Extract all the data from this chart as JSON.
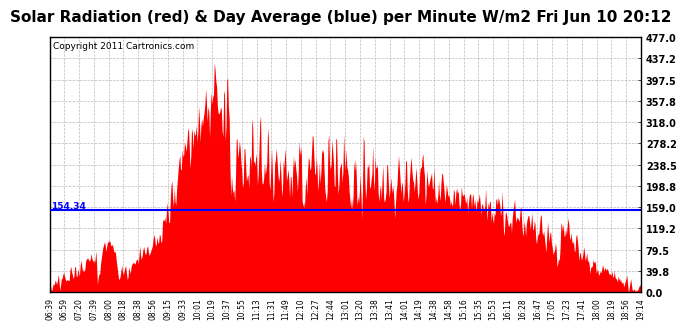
{
  "title": "Solar Radiation (red) & Day Average (blue) per Minute W/m2 Fri Jun 10 20:12",
  "copyright": "Copyright 2011 Cartronics.com",
  "y_ticks": [
    0.0,
    39.8,
    79.5,
    119.2,
    159.0,
    198.8,
    238.5,
    278.2,
    318.0,
    357.8,
    397.5,
    437.2,
    477.0
  ],
  "y_min": 0.0,
  "y_max": 477.0,
  "day_average": 154.34,
  "x_labels": [
    "06:39",
    "06:59",
    "07:20",
    "07:39",
    "08:00",
    "08:18",
    "08:38",
    "08:56",
    "09:15",
    "09:33",
    "10:01",
    "10:19",
    "10:37",
    "10:55",
    "11:13",
    "11:31",
    "11:49",
    "12:10",
    "12:27",
    "12:44",
    "13:01",
    "13:20",
    "13:38",
    "13:41",
    "14:01",
    "14:19",
    "14:38",
    "14:58",
    "15:16",
    "15:35",
    "15:53",
    "16:11",
    "16:28",
    "16:47",
    "17:05",
    "17:23",
    "17:41",
    "18:00",
    "18:19",
    "18:56",
    "19:14"
  ],
  "bg_color": "#ffffff",
  "fill_color": "#ff0000",
  "line_color": "#0000ff",
  "grid_color": "#aaaaaa",
  "title_fontsize": 11,
  "copyright_fontsize": 6.5
}
